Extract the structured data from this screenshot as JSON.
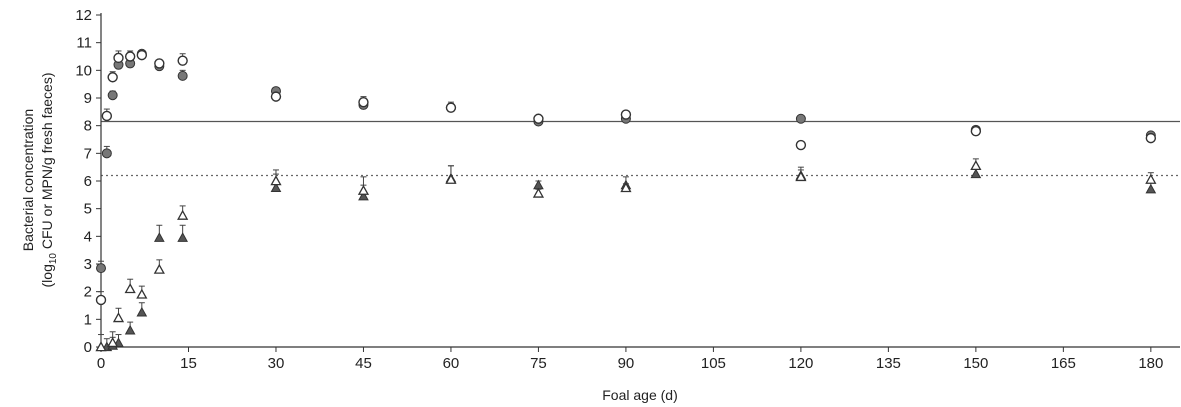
{
  "chart_data": {
    "type": "scatter",
    "xlabel": "Foal age (d)",
    "ylabel_line1": "Bacterial concentration",
    "ylabel_line2_prefix": "(log",
    "ylabel_line2_sub": "10",
    "ylabel_line2_suffix": " CFU or MPN/g fresh faeces)",
    "xlim": [
      0,
      185
    ],
    "ylim": [
      0,
      12
    ],
    "x_ticks": [
      0,
      15,
      30,
      45,
      60,
      75,
      90,
      105,
      120,
      135,
      150,
      165,
      180
    ],
    "y_ticks": [
      0,
      1,
      2,
      3,
      4,
      5,
      6,
      7,
      8,
      9,
      10,
      11,
      12
    ],
    "grid": false,
    "reference_lines": [
      {
        "y": 8.15,
        "style": "solid"
      },
      {
        "y": 6.2,
        "style": "dotted"
      }
    ],
    "series": [
      {
        "marker": "circle-filled",
        "color": "#777777",
        "points": [
          {
            "x": 0,
            "y": 2.85,
            "err": 0.25
          },
          {
            "x": 1,
            "y": 7.0,
            "err": 0.25
          },
          {
            "x": 2,
            "y": 9.1,
            "err": 0.15
          },
          {
            "x": 3,
            "y": 10.2,
            "err": 0.2
          },
          {
            "x": 5,
            "y": 10.25,
            "err": 0.25
          },
          {
            "x": 7,
            "y": 10.6,
            "err": 0.1
          },
          {
            "x": 10,
            "y": 10.15,
            "err": 0.1
          },
          {
            "x": 14,
            "y": 9.8,
            "err": 0.2
          },
          {
            "x": 30,
            "y": 9.25,
            "err": 0.1
          },
          {
            "x": 45,
            "y": 8.75,
            "err": 0.25
          },
          {
            "x": 60,
            "y": 8.65,
            "err": 0.2
          },
          {
            "x": 75,
            "y": 8.15,
            "err": 0.1
          },
          {
            "x": 90,
            "y": 8.25,
            "err": 0.1
          },
          {
            "x": 120,
            "y": 8.25,
            "err": 0.1
          },
          {
            "x": 150,
            "y": 7.85,
            "err": 0.1
          },
          {
            "x": 180,
            "y": 7.65,
            "err": 0.1
          }
        ]
      },
      {
        "marker": "circle-open",
        "color": "#333333",
        "points": [
          {
            "x": 0,
            "y": 1.7,
            "err": 0.3
          },
          {
            "x": 1,
            "y": 8.35,
            "err": 0.25
          },
          {
            "x": 2,
            "y": 9.75,
            "err": 0.2
          },
          {
            "x": 3,
            "y": 10.45,
            "err": 0.25
          },
          {
            "x": 5,
            "y": 10.5,
            "err": 0.2
          },
          {
            "x": 7,
            "y": 10.55,
            "err": 0.15
          },
          {
            "x": 10,
            "y": 10.25,
            "err": 0.1
          },
          {
            "x": 14,
            "y": 10.35,
            "err": 0.25
          },
          {
            "x": 30,
            "y": 9.05,
            "err": 0.1
          },
          {
            "x": 45,
            "y": 8.85,
            "err": 0.2
          },
          {
            "x": 60,
            "y": 8.65,
            "err": 0.15
          },
          {
            "x": 75,
            "y": 8.25,
            "err": 0.1
          },
          {
            "x": 90,
            "y": 8.4,
            "err": 0.1
          },
          {
            "x": 120,
            "y": 7.3,
            "err": 0.1
          },
          {
            "x": 150,
            "y": 7.8,
            "err": 0.1
          },
          {
            "x": 180,
            "y": 7.55,
            "err": 0.1
          }
        ]
      },
      {
        "marker": "triangle-filled",
        "color": "#555555",
        "points": [
          {
            "x": 1,
            "y": 0.0,
            "err": 0.3
          },
          {
            "x": 2,
            "y": 0.05,
            "err": 0.3
          },
          {
            "x": 3,
            "y": 0.15,
            "err": 0.3
          },
          {
            "x": 5,
            "y": 0.6,
            "err": 0.3
          },
          {
            "x": 7,
            "y": 1.25,
            "err": 0.35
          },
          {
            "x": 10,
            "y": 3.95,
            "err": 0.45
          },
          {
            "x": 14,
            "y": 3.95,
            "err": 0.45
          },
          {
            "x": 30,
            "y": 5.75,
            "err": 0.5
          },
          {
            "x": 45,
            "y": 5.45,
            "err": 0.4
          },
          {
            "x": 60,
            "y": 6.1,
            "err": 0.45
          },
          {
            "x": 75,
            "y": 5.85,
            "err": 0.15
          },
          {
            "x": 90,
            "y": 5.85,
            "err": 0.3
          },
          {
            "x": 120,
            "y": 6.2,
            "err": 0.3
          },
          {
            "x": 150,
            "y": 6.25,
            "err": 0.3
          },
          {
            "x": 180,
            "y": 5.7,
            "err": 0.3
          }
        ]
      },
      {
        "marker": "triangle-open",
        "color": "#333333",
        "points": [
          {
            "x": 0,
            "y": 0.0,
            "err": 0.45
          },
          {
            "x": 2,
            "y": 0.15,
            "err": 0.4
          },
          {
            "x": 3,
            "y": 1.05,
            "err": 0.35
          },
          {
            "x": 5,
            "y": 2.1,
            "err": 0.35
          },
          {
            "x": 7,
            "y": 1.9,
            "err": 0.3
          },
          {
            "x": 10,
            "y": 2.8,
            "err": 0.35
          },
          {
            "x": 14,
            "y": 4.75,
            "err": 0.35
          },
          {
            "x": 30,
            "y": 6.0,
            "err": 0.4
          },
          {
            "x": 45,
            "y": 5.65,
            "err": 0.5
          },
          {
            "x": 60,
            "y": 6.05,
            "err": 0.5
          },
          {
            "x": 75,
            "y": 5.55,
            "err": 0.15
          },
          {
            "x": 90,
            "y": 5.75,
            "err": 0.15
          },
          {
            "x": 120,
            "y": 6.15,
            "err": 0.25
          },
          {
            "x": 150,
            "y": 6.55,
            "err": 0.25
          },
          {
            "x": 180,
            "y": 6.05,
            "err": 0.25
          }
        ]
      }
    ]
  }
}
